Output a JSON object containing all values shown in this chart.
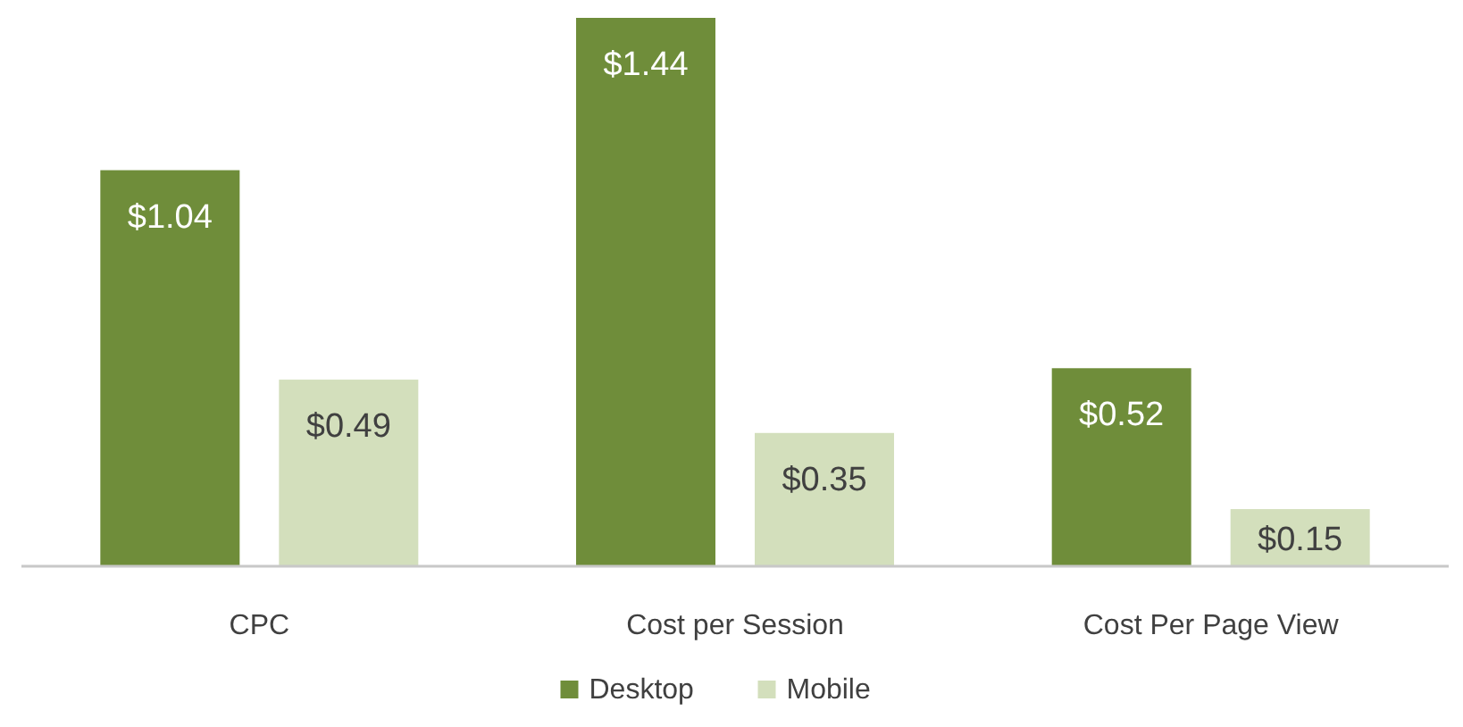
{
  "chart_data": {
    "type": "bar",
    "categories": [
      "CPC",
      "Cost per Session",
      "Cost Per Page View"
    ],
    "series": [
      {
        "name": "Desktop",
        "color": "#6f8d3a",
        "values": [
          1.04,
          1.44,
          0.52
        ],
        "value_labels": [
          "$1.04",
          "$1.44",
          "$0.52"
        ]
      },
      {
        "name": "Mobile",
        "color": "#d3dfbc",
        "values": [
          0.49,
          0.35,
          0.15
        ],
        "value_labels": [
          "$0.49",
          "$0.35",
          "$0.15"
        ]
      }
    ],
    "legend": "bottom"
  }
}
